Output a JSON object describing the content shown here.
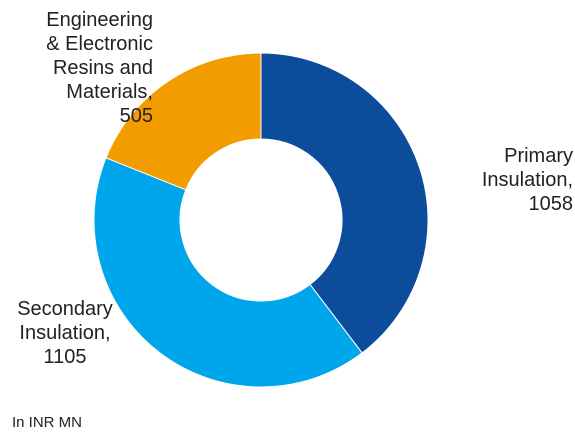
{
  "chart_data": {
    "type": "pie",
    "donut": true,
    "title": "",
    "unit_note": "In INR MN",
    "legend": "none",
    "slices": [
      {
        "name": "Primary Insulation",
        "value": 1058,
        "color": "#0b4c9b",
        "label_lines": [
          "Primary",
          "Insulation,",
          "1058"
        ]
      },
      {
        "name": "Secondary Insulation",
        "value": 1105,
        "color": "#00a6eb",
        "label_lines": [
          "Secondary",
          "Insulation,",
          "1105"
        ]
      },
      {
        "name": "Engineering & Electronic Resins and Materials",
        "value": 505,
        "color": "#f39c00",
        "label_lines": [
          "Engineering",
          "& Electronic",
          "Resins and",
          "Materials,",
          "505"
        ]
      }
    ]
  }
}
